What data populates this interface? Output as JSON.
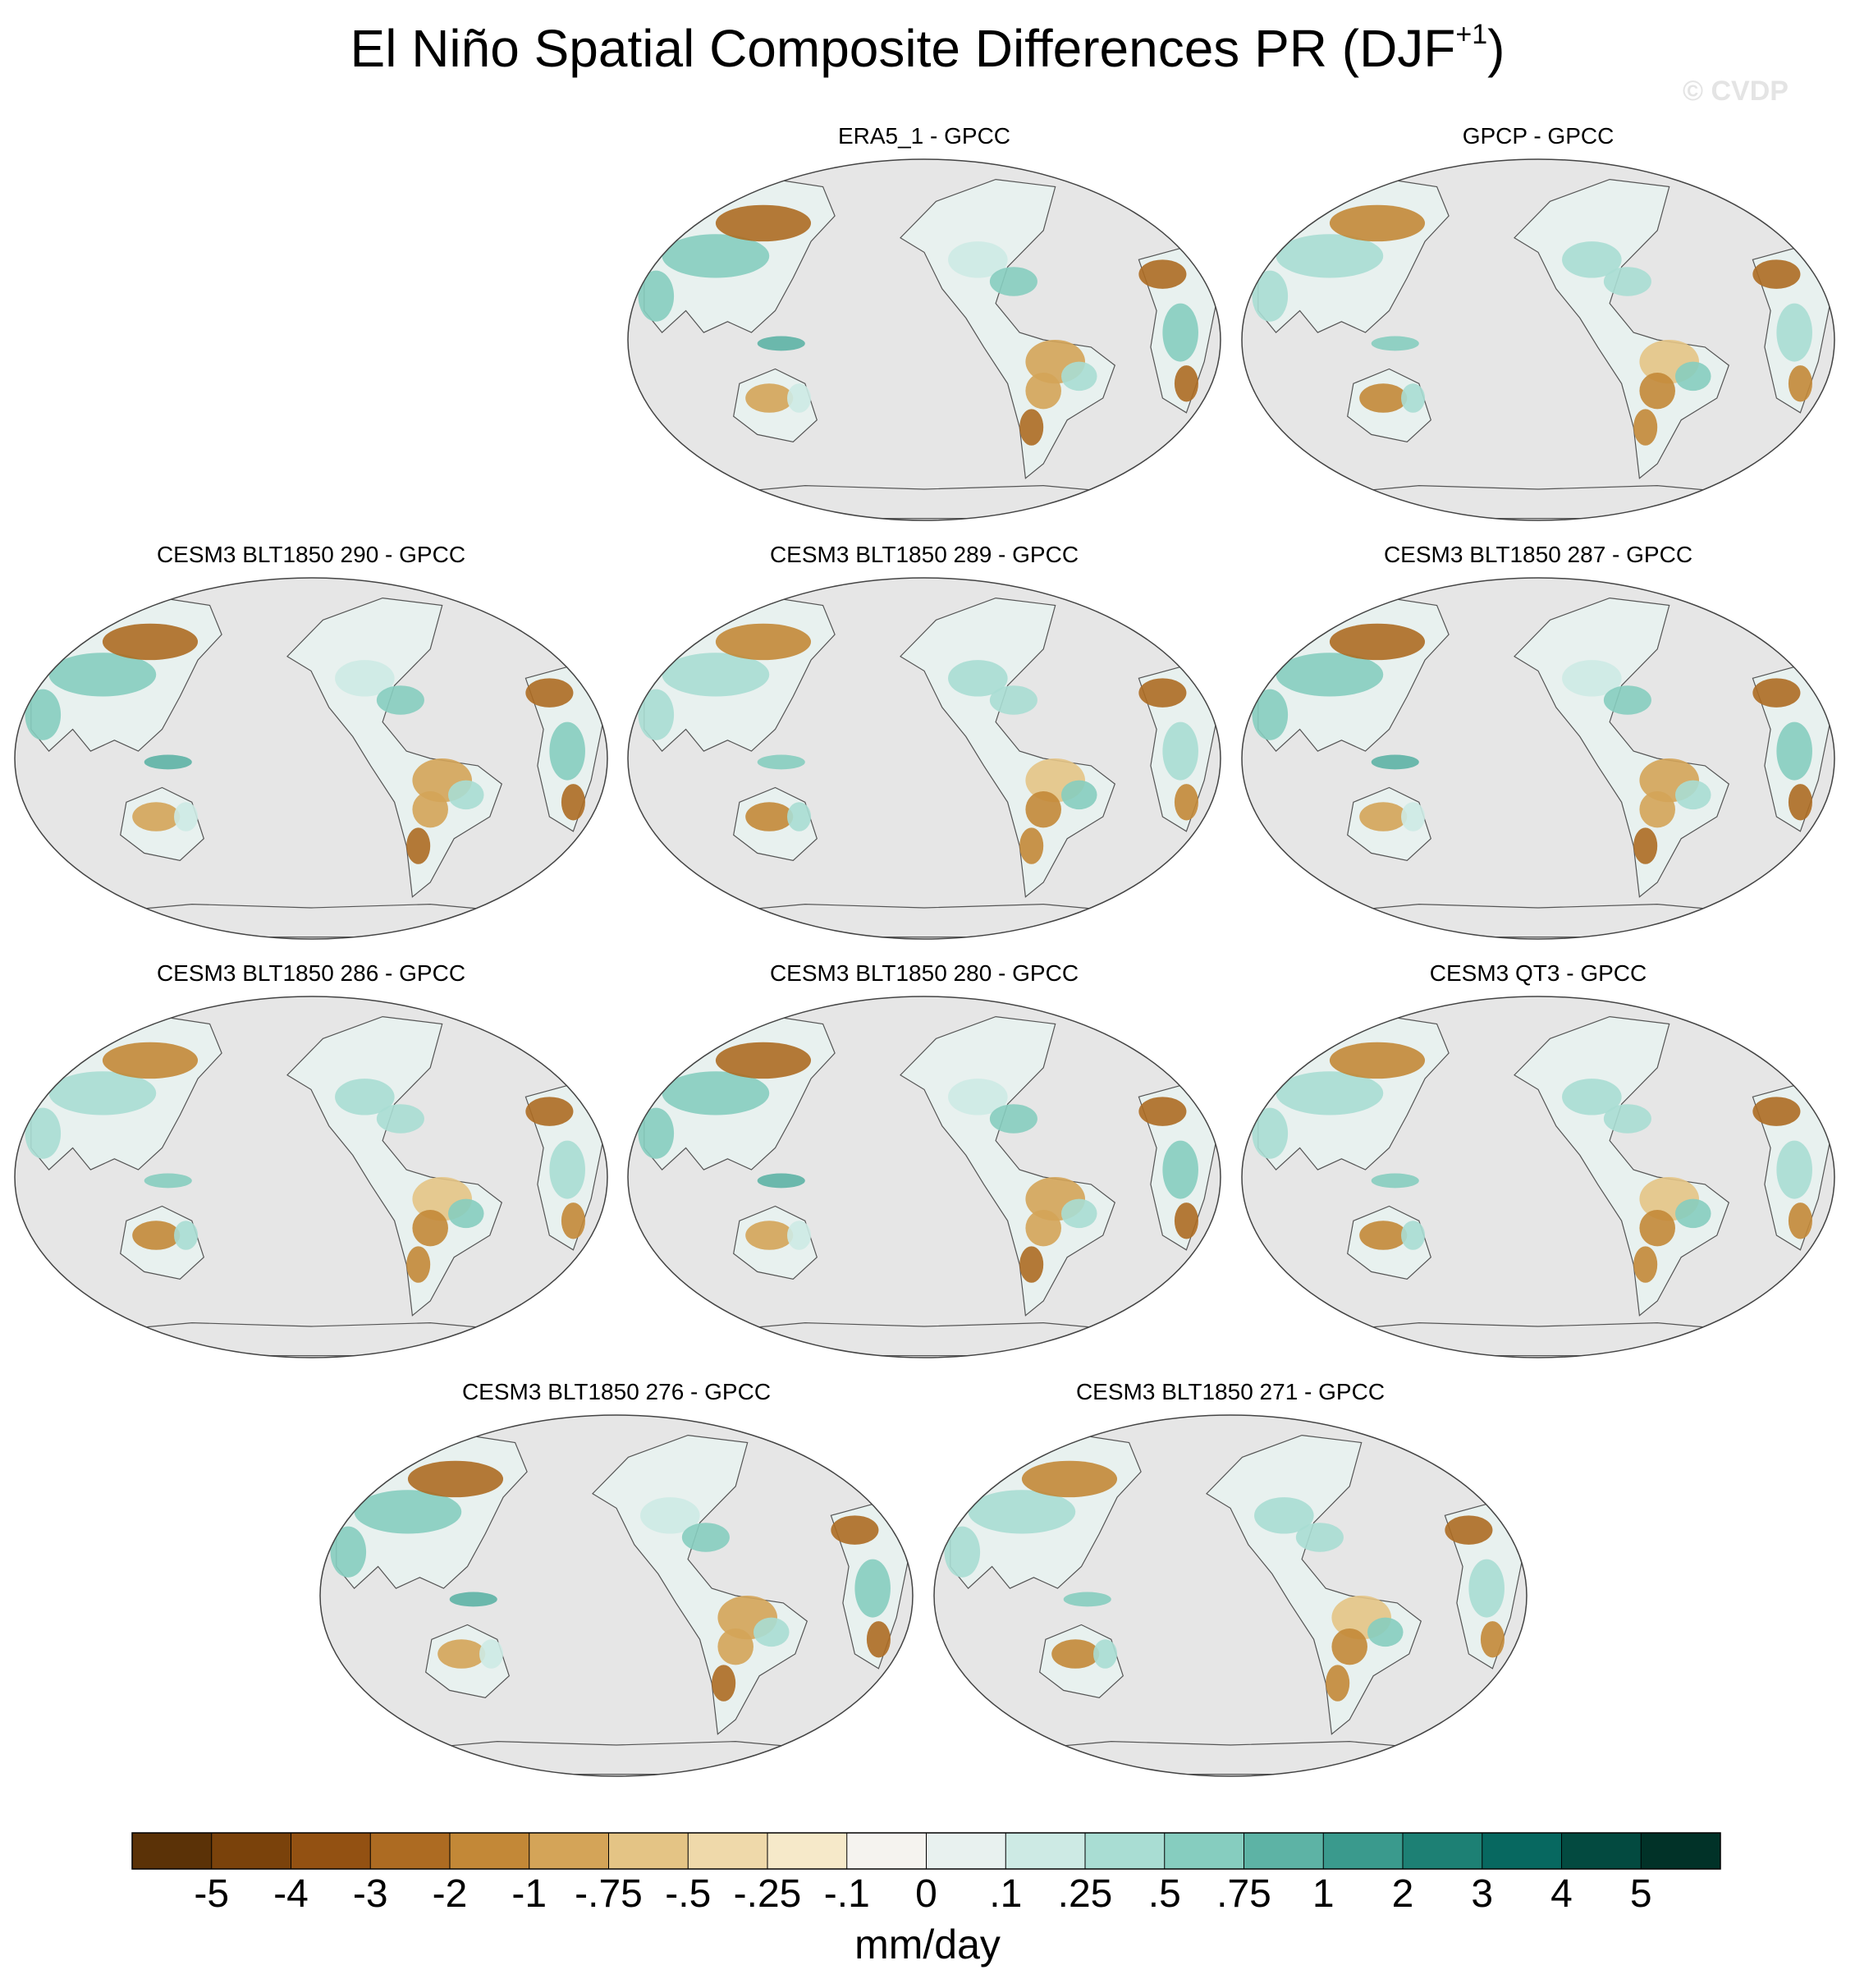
{
  "figure": {
    "title_main": "El Niño Spatial Composite Differences PR (DJF",
    "title_sup": "+1",
    "title_close": ")",
    "watermark": "© CVDP"
  },
  "chart_data": {
    "type": "heatmap",
    "title": "El Niño Spatial Composite Differences PR (DJF+1)",
    "projection": "Robinson, Pacific-centered global maps",
    "panels": [
      {
        "title": "ERA5_1 - GPCC"
      },
      {
        "title": "GPCP - GPCC"
      },
      {
        "title": "CESM3 BLT1850 290 - GPCC"
      },
      {
        "title": "CESM3 BLT1850 289 - GPCC"
      },
      {
        "title": "CESM3 BLT1850 287 - GPCC"
      },
      {
        "title": "CESM3 BLT1850 286 - GPCC"
      },
      {
        "title": "CESM3 BLT1850 280 - GPCC"
      },
      {
        "title": "CESM3 QT3 - GPCC"
      },
      {
        "title": "CESM3 BLT1850 276 - GPCC"
      },
      {
        "title": "CESM3 BLT1850 271 - GPCC"
      }
    ],
    "colorbar": {
      "label": "mm/day",
      "levels": [
        "-5",
        "-4",
        "-3",
        "-2",
        "-1",
        "-.75",
        "-.5",
        "-.25",
        "-.1",
        "0",
        ".1",
        ".25",
        ".5",
        ".75",
        "1",
        "2",
        "3",
        "4",
        "5"
      ],
      "colors": [
        "#5b3207",
        "#7a420b",
        "#935112",
        "#ad6b22",
        "#c38837",
        "#d4a458",
        "#e4c485",
        "#efd9aa",
        "#f6e9c9",
        "#f5f3ef",
        "#e8f1ef",
        "#cdeae4",
        "#a9ddd3",
        "#86cdbf",
        "#5db3a5",
        "#3a9a8d",
        "#1d8074",
        "#076860",
        "#034a40",
        "#013228"
      ]
    }
  }
}
